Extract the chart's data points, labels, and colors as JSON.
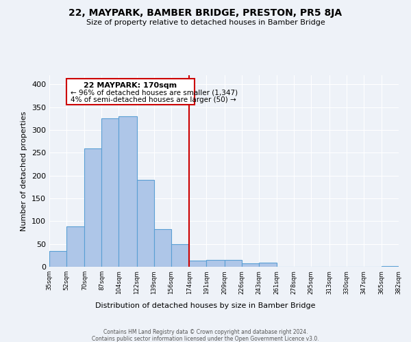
{
  "title": "22, MAYPARK, BAMBER BRIDGE, PRESTON, PR5 8JA",
  "subtitle": "Size of property relative to detached houses in Bamber Bridge",
  "xlabel": "Distribution of detached houses by size in Bamber Bridge",
  "ylabel": "Number of detached properties",
  "bar_edges": [
    35,
    52,
    70,
    87,
    104,
    122,
    139,
    156,
    174,
    191,
    209,
    226,
    243,
    261,
    278,
    295,
    313,
    330,
    347,
    365,
    382
  ],
  "bar_heights": [
    35,
    88,
    260,
    325,
    330,
    190,
    83,
    50,
    13,
    15,
    15,
    8,
    9,
    0,
    0,
    0,
    0,
    0,
    0,
    1
  ],
  "bar_color": "#aec6e8",
  "bar_edge_color": "#5a9fd4",
  "vline_x": 174,
  "vline_color": "#cc0000",
  "annotation_title": "22 MAYPARK: 170sqm",
  "annotation_line1": "← 96% of detached houses are smaller (1,347)",
  "annotation_line2": "4% of semi-detached houses are larger (50) →",
  "annotation_box_edge_color": "#cc0000",
  "tick_labels": [
    "35sqm",
    "52sqm",
    "70sqm",
    "87sqm",
    "104sqm",
    "122sqm",
    "139sqm",
    "156sqm",
    "174sqm",
    "191sqm",
    "209sqm",
    "226sqm",
    "243sqm",
    "261sqm",
    "278sqm",
    "295sqm",
    "313sqm",
    "330sqm",
    "347sqm",
    "365sqm",
    "382sqm"
  ],
  "yticks": [
    0,
    50,
    100,
    150,
    200,
    250,
    300,
    350,
    400
  ],
  "ylim": [
    0,
    420
  ],
  "footer1": "Contains HM Land Registry data © Crown copyright and database right 2024.",
  "footer2": "Contains public sector information licensed under the Open Government Licence v3.0.",
  "bg_color": "#eef2f8"
}
